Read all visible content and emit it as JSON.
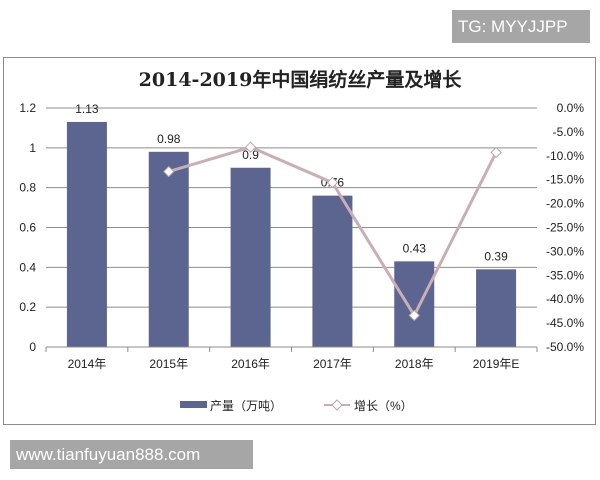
{
  "watermark_top": "TG: MYYJJPP",
  "watermark_bottom": "www.tianfuyuan888.com",
  "chart_data": {
    "type": "bar+line",
    "title": "2014-2019年中国绢纺丝产量及增长",
    "categories": [
      "2014年",
      "2015年",
      "2016年",
      "2017年",
      "2018年",
      "2019年E"
    ],
    "series": [
      {
        "name": "产量（万吨）",
        "type": "bar",
        "axis": "left",
        "color": "#5b6590",
        "values": [
          1.13,
          0.98,
          0.9,
          0.76,
          0.43,
          0.39
        ],
        "data_labels": [
          "1.13",
          "0.98",
          "0.9",
          "0.76",
          "0.43",
          "0.39"
        ]
      },
      {
        "name": "增长（%）",
        "type": "line",
        "axis": "right",
        "color": "#c9aeb4",
        "values": [
          null,
          -13.3,
          -8.2,
          -15.6,
          -43.4,
          -9.3
        ]
      }
    ],
    "ylim": [
      0,
      1.2
    ],
    "yticks": [
      "0",
      "0.2",
      "0.4",
      "0.6",
      "0.8",
      "1",
      "1.2"
    ],
    "y2lim": [
      -50,
      0
    ],
    "y2ticks": [
      "-50.0%",
      "-45.0%",
      "-40.0%",
      "-35.0%",
      "-30.0%",
      "-25.0%",
      "-20.0%",
      "-15.0%",
      "-10.0%",
      "-5.0%",
      "0.0%"
    ],
    "grid": true,
    "legend": "bottom"
  }
}
